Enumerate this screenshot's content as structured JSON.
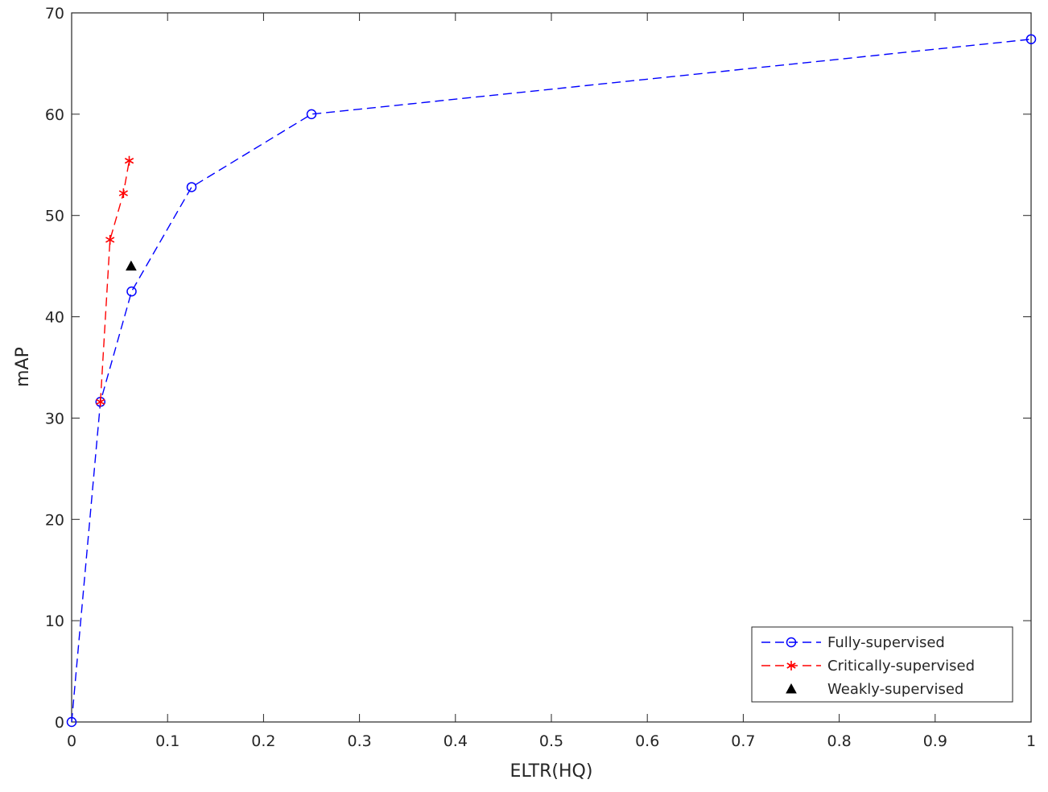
{
  "chart_data": {
    "type": "line",
    "title": "",
    "xlabel": "ELTR(HQ)",
    "ylabel": "mAP",
    "xlim": [
      0,
      1
    ],
    "ylim": [
      0,
      70
    ],
    "xticks": [
      0,
      0.1,
      0.2,
      0.3,
      0.4,
      0.5,
      0.6,
      0.7,
      0.8,
      0.9,
      1
    ],
    "xtick_labels": [
      "0",
      "0.1",
      "0.2",
      "0.3",
      "0.4",
      "0.5",
      "0.6",
      "0.7",
      "0.8",
      "0.9",
      "1"
    ],
    "yticks": [
      0,
      10,
      20,
      30,
      40,
      50,
      60,
      70
    ],
    "ytick_labels": [
      "0",
      "10",
      "20",
      "30",
      "40",
      "50",
      "60",
      "70"
    ],
    "grid": false,
    "legend_position": "bottom-right",
    "series": [
      {
        "name": "Fully-supervised",
        "color": "#0000ff",
        "marker": "circle",
        "line": "dashed",
        "x": [
          0,
          0.03,
          0.0625,
          0.125,
          0.25,
          1
        ],
        "y": [
          0,
          31.6,
          42.5,
          52.8,
          60.0,
          67.4
        ]
      },
      {
        "name": "Critically-supervised",
        "color": "#ff0000",
        "marker": "asterisk",
        "line": "dashed",
        "x": [
          0.03,
          0.04,
          0.054,
          0.06
        ],
        "y": [
          31.6,
          47.6,
          52.2,
          55.4
        ]
      },
      {
        "name": "Weakly-supervised",
        "color": "#000000",
        "marker": "triangle",
        "line": "none",
        "x": [
          0.062
        ],
        "y": [
          45.0
        ]
      }
    ]
  }
}
